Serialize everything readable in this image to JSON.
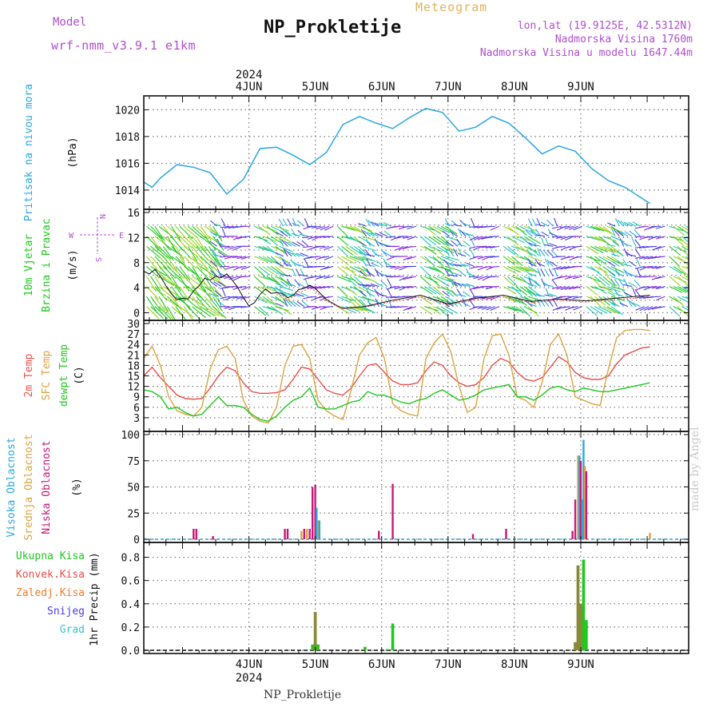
{
  "header": {
    "model_label": "Model",
    "model_name": "wrf-nmm_v3.9.1 e1km",
    "meteogram_label": "Meteogram",
    "station_title": "NP_Prokletije",
    "lonlat": "lon,lat (19.9125E, 42.5312N)",
    "altitude": "Nadmorska Visina 1760m",
    "model_altitude": "Nadmorska Visina u modelu 1647.44m"
  },
  "footer": {
    "station_title": "NP_Prokletije",
    "watermark": "made by Angel"
  },
  "colors": {
    "pressure": "#2aa7e0",
    "temp2m": "#e8514a",
    "sfc_temp": "#d9a441",
    "dewpt": "#1ec81e",
    "high_cloud": "#2aa7e0",
    "mid_cloud": "#d9a441",
    "low_cloud": "#c8197a",
    "total_precip": "#1ec81e",
    "convective": "#e8514a",
    "freezing": "#f07d2a",
    "snow": "#4a3fe0",
    "hail": "#2ec8c8",
    "purple_text": "#b04ed0"
  },
  "chart_data": [
    {
      "id": "pressure",
      "type": "line",
      "ylabel_side": "Pritisak na nivou mora",
      "ylabel_unit": "(hPa)",
      "ylim": [
        1012.8,
        1020.8
      ],
      "yticks": [
        1014,
        1016,
        1018,
        1020
      ],
      "x_top_labels": [
        "4JUN",
        "5JUN",
        "6JUN",
        "7JUN",
        "8JUN",
        "9JUN"
      ],
      "x_top_year": "2024",
      "series": [
        {
          "values_hours": [
            0,
            3,
            6,
            12,
            18,
            24,
            30,
            36,
            42,
            48,
            54,
            60,
            66,
            72,
            78,
            84,
            90,
            96,
            102,
            108,
            114,
            120,
            126,
            132,
            138,
            144,
            150,
            156,
            162,
            168,
            174,
            183
          ],
          "values": [
            1014.6,
            1014.2,
            1014.9,
            1015.9,
            1015.7,
            1015.3,
            1013.7,
            1014.8,
            1017.1,
            1017.2,
            1016.6,
            1015.9,
            1016.8,
            1018.9,
            1019.5,
            1019.0,
            1018.6,
            1019.4,
            1020.1,
            1019.8,
            1018.4,
            1018.7,
            1019.5,
            1019.0,
            1017.9,
            1016.7,
            1017.3,
            1016.9,
            1015.6,
            1014.7,
            1014.2,
            1013.0
          ]
        }
      ]
    },
    {
      "id": "wind",
      "type": "line",
      "ylabel_side_1": "10m Vjetar",
      "ylabel_side_2": "Brzina i Pravac",
      "ylabel_unit": "(m/s)",
      "compass": {
        "n": "N",
        "s": "S",
        "e": "E",
        "w": "W"
      },
      "ylim": [
        -0.7,
        16
      ],
      "yticks": [
        0,
        4,
        8,
        12,
        16
      ],
      "yminor": [
        2,
        6,
        10,
        14
      ],
      "series": [
        {
          "name": "speed",
          "hours": [
            0,
            2,
            4,
            6,
            8,
            10,
            12,
            14,
            16,
            18,
            20,
            22,
            24,
            26,
            28,
            30,
            32,
            34,
            36,
            38,
            40,
            42,
            44,
            46,
            48,
            50,
            52,
            54,
            56,
            58,
            60,
            62,
            64,
            66,
            68,
            70,
            72,
            80,
            90,
            100,
            110,
            120,
            130,
            140,
            150,
            160,
            170,
            183
          ],
          "values": [
            6.6,
            6.2,
            6.9,
            5.8,
            4.3,
            3.0,
            2.1,
            2.3,
            2.2,
            3.5,
            4.3,
            5.5,
            5.2,
            5.8,
            5.6,
            6.2,
            5.2,
            4.0,
            2.4,
            1.1,
            1.6,
            2.9,
            3.8,
            3.1,
            3.2,
            3.1,
            2.4,
            2.8,
            3.7,
            3.9,
            4.4,
            3.9,
            3.0,
            2.1,
            1.6,
            1.1,
            0.7,
            1.0,
            2.0,
            2.8,
            1.4,
            2.3,
            2.8,
            1.8,
            2.2,
            1.9,
            2.3,
            2.8
          ]
        }
      ]
    },
    {
      "id": "temperature",
      "type": "line",
      "ylabel_side_1": "2m Temp",
      "ylabel_side_2": "SFC Temp",
      "ylabel_side_3": "dewpt Temp",
      "ylabel_unit": "(C)",
      "ylim": [
        0,
        30
      ],
      "yticks": [
        3,
        6,
        9,
        12,
        15,
        18,
        21,
        24,
        27,
        30
      ],
      "series": [
        {
          "name": "2m Temp",
          "hours": [
            0,
            3,
            6,
            9,
            12,
            15,
            18,
            21,
            24,
            27,
            30,
            33,
            36,
            39,
            42,
            45,
            48,
            51,
            54,
            57,
            60,
            63,
            66,
            69,
            72,
            75,
            78,
            81,
            84,
            87,
            90,
            93,
            96,
            99,
            102,
            105,
            108,
            111,
            114,
            117,
            120,
            123,
            126,
            129,
            132,
            135,
            138,
            141,
            144,
            147,
            150,
            153,
            156,
            159,
            162,
            165,
            168,
            171,
            174,
            177,
            180,
            183
          ],
          "values": [
            15.0,
            17.5,
            14.5,
            12.0,
            9.5,
            8.5,
            8.3,
            8.5,
            11.5,
            15.0,
            17.5,
            16.5,
            13.0,
            10.5,
            10.0,
            10.0,
            10.2,
            11.0,
            14.0,
            17.5,
            17.0,
            14.0,
            11.0,
            10.0,
            9.5,
            11.5,
            15.0,
            18.0,
            18.5,
            16.0,
            13.5,
            12.5,
            12.5,
            13.0,
            16.5,
            19.0,
            18.0,
            15.0,
            13.0,
            12.0,
            12.5,
            14.5,
            18.0,
            20.0,
            19.0,
            16.0,
            14.0,
            13.5,
            14.5,
            17.5,
            20.5,
            19.0,
            16.0,
            14.5,
            14.0,
            14.0,
            15.0,
            18.5,
            21.0,
            22.0,
            23.0,
            23.3
          ]
        },
        {
          "name": "SFC Temp",
          "hours": [
            0,
            3,
            6,
            9,
            12,
            15,
            18,
            21,
            24,
            27,
            30,
            33,
            36,
            39,
            42,
            45,
            48,
            51,
            54,
            57,
            60,
            63,
            66,
            69,
            72,
            75,
            78,
            81,
            84,
            87,
            90,
            93,
            96,
            99,
            102,
            105,
            108,
            111,
            114,
            117,
            120,
            123,
            126,
            129,
            132,
            135,
            138,
            141,
            144,
            147,
            150,
            153,
            156,
            159,
            162,
            165,
            168,
            171,
            174,
            177,
            180,
            183
          ],
          "values": [
            20.0,
            23.5,
            18.0,
            9.0,
            5.0,
            4.0,
            3.5,
            6.0,
            17.0,
            22.5,
            23.5,
            20.0,
            8.0,
            3.5,
            2.0,
            1.5,
            6.0,
            18.0,
            23.5,
            24.0,
            20.0,
            8.0,
            5.0,
            3.5,
            2.5,
            11.0,
            21.0,
            24.5,
            26.0,
            20.0,
            7.0,
            5.0,
            4.0,
            3.5,
            20.0,
            24.5,
            27.0,
            22.0,
            12.0,
            4.5,
            6.0,
            20.0,
            26.5,
            27.0,
            21.0,
            9.0,
            8.0,
            6.0,
            13.0,
            24.0,
            27.0,
            21.0,
            9.0,
            8.0,
            7.0,
            6.5,
            17.0,
            26.0,
            28.0,
            28.3,
            28.3,
            28.0
          ]
        },
        {
          "name": "dewpt Temp",
          "hours": [
            0,
            3,
            6,
            9,
            12,
            15,
            18,
            21,
            24,
            27,
            30,
            33,
            36,
            39,
            42,
            45,
            48,
            51,
            54,
            57,
            60,
            63,
            66,
            69,
            72,
            75,
            78,
            81,
            84,
            87,
            90,
            93,
            96,
            99,
            102,
            105,
            108,
            111,
            114,
            117,
            120,
            123,
            126,
            129,
            132,
            135,
            138,
            141,
            144,
            147,
            150,
            153,
            156,
            159,
            162,
            165,
            168,
            171,
            174,
            177,
            180,
            183
          ],
          "values": [
            11.0,
            10.5,
            9.0,
            5.5,
            6.0,
            4.5,
            3.5,
            4.0,
            6.5,
            9.0,
            6.5,
            6.5,
            6.0,
            4.0,
            2.5,
            2.0,
            3.5,
            6.0,
            8.0,
            9.0,
            11.5,
            6.0,
            5.5,
            5.5,
            6.5,
            7.5,
            8.0,
            10.5,
            9.5,
            9.5,
            8.5,
            7.5,
            7.0,
            8.0,
            8.5,
            10.0,
            11.0,
            9.5,
            8.0,
            8.5,
            9.5,
            11.0,
            11.5,
            12.0,
            12.5,
            9.0,
            9.0,
            8.0,
            9.5,
            11.5,
            12.0,
            11.0,
            10.5,
            11.5,
            11.0,
            10.5,
            10.5,
            11.0,
            11.5,
            12.0,
            12.5,
            13.0
          ]
        }
      ]
    },
    {
      "id": "clouds",
      "type": "bar",
      "ylabel_side_1": "Visoka Oblacnost",
      "ylabel_side_2": "Srednja Oblacnost",
      "ylabel_side_3": "Niska Oblacnost",
      "ylabel_unit": "(%)",
      "ylim": [
        0,
        100
      ],
      "yticks": [
        0,
        25,
        50,
        75,
        100
      ],
      "bars": [
        {
          "hour": 18,
          "series": "low",
          "value": 10
        },
        {
          "hour": 19,
          "series": "low",
          "value": 10
        },
        {
          "hour": 25,
          "series": "low",
          "value": 3
        },
        {
          "hour": 51,
          "series": "low",
          "value": 10
        },
        {
          "hour": 52,
          "series": "low",
          "value": 10
        },
        {
          "hour": 57,
          "series": "mid",
          "value": 8
        },
        {
          "hour": 58,
          "series": "low",
          "value": 10
        },
        {
          "hour": 59,
          "series": "mid",
          "value": 10
        },
        {
          "hour": 60,
          "series": "low",
          "value": 10
        },
        {
          "hour": 61,
          "series": "low",
          "value": 50
        },
        {
          "hour": 62,
          "series": "low",
          "value": 52
        },
        {
          "hour": 62.5,
          "series": "high",
          "value": 30
        },
        {
          "hour": 63,
          "series": "mid",
          "value": 18
        },
        {
          "hour": 63.5,
          "series": "high",
          "value": 18
        },
        {
          "hour": 85,
          "series": "low",
          "value": 8
        },
        {
          "hour": 90,
          "series": "low",
          "value": 53
        },
        {
          "hour": 119,
          "series": "low",
          "value": 5
        },
        {
          "hour": 131,
          "series": "low",
          "value": 10
        },
        {
          "hour": 155,
          "series": "low",
          "value": 8
        },
        {
          "hour": 156,
          "series": "low",
          "value": 38
        },
        {
          "hour": 157,
          "series": "mid",
          "value": 80
        },
        {
          "hour": 157.5,
          "series": "high",
          "value": 80
        },
        {
          "hour": 158,
          "series": "low",
          "value": 75
        },
        {
          "hour": 158.5,
          "series": "high",
          "value": 38
        },
        {
          "hour": 159,
          "series": "high",
          "value": 95
        },
        {
          "hour": 159.5,
          "series": "mid",
          "value": 70
        },
        {
          "hour": 160,
          "series": "low",
          "value": 65
        },
        {
          "hour": 183,
          "series": "mid",
          "value": 6
        }
      ]
    },
    {
      "id": "precip",
      "type": "bar",
      "ylabel_legend": [
        "Ukupna Kisa",
        "Konvek.Kisa",
        "Zaledj.Kisa",
        "Snijeg",
        "Grad"
      ],
      "ylabel_unit": "1hr Precip (mm)",
      "ylim": [
        0,
        0.9
      ],
      "yticks": [
        0,
        0.2,
        0.4,
        0.6,
        0.8
      ],
      "x_bottom_labels": [
        "4JUN",
        "5JUN",
        "6JUN",
        "7JUN",
        "8JUN",
        "9JUN"
      ],
      "x_bottom_year": "2024",
      "bars": [
        {
          "hour": 61,
          "total": 0.05,
          "conv": 0.0
        },
        {
          "hour": 62,
          "total": 0.33,
          "conv": 0.33
        },
        {
          "hour": 63,
          "total": 0.05,
          "conv": 0.0
        },
        {
          "hour": 80,
          "total": 0.03,
          "conv": 0.0
        },
        {
          "hour": 88,
          "total": 0.01,
          "conv": 0.0
        },
        {
          "hour": 90,
          "total": 0.23,
          "conv": 0.0
        },
        {
          "hour": 156,
          "total": 0.07,
          "conv": 0.07
        },
        {
          "hour": 157,
          "total": 0.73,
          "conv": 0.73
        },
        {
          "hour": 158,
          "total": 0.4,
          "conv": 0.4
        },
        {
          "hour": 159,
          "total": 0.78,
          "conv": 0.0
        },
        {
          "hour": 160,
          "total": 0.26,
          "conv": 0.0
        }
      ]
    }
  ]
}
